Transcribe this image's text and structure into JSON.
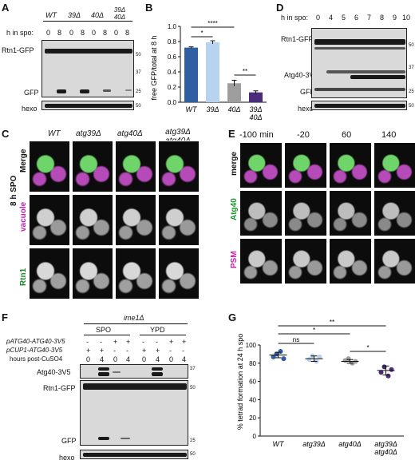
{
  "panels": {
    "A": {
      "letter": "A",
      "genotypes": [
        "WT",
        "39Δ",
        "40Δ",
        "39Δ 40Δ"
      ],
      "time_label": "h in spo:",
      "timepoints": [
        "0",
        "8",
        "0",
        "8",
        "0",
        "8",
        "0",
        "8"
      ],
      "row_labels": [
        "Rtn1-GFP",
        "GFP",
        "hexo"
      ],
      "mw": [
        "50",
        "37",
        "25",
        "50"
      ]
    },
    "B": {
      "letter": "B",
      "ylabel": "free GFP/total at 8 h",
      "significance": [
        "****",
        "*",
        "**"
      ]
    },
    "C": {
      "letter": "C",
      "columns": [
        "WT",
        "atg39Δ",
        "atg40Δ",
        "atg39Δ atg40Δ"
      ],
      "rows": [
        "Merge",
        "vacuole",
        "Rtn1"
      ],
      "side_label": "8 h SPO"
    },
    "D": {
      "letter": "D",
      "time_label": "h in spo:",
      "timepoints": [
        "0",
        "4",
        "5",
        "6",
        "7",
        "8",
        "9",
        "10"
      ],
      "row_labels": [
        "Rtn1-GFP",
        "Atg40-3V5",
        "GFP",
        "hexo"
      ],
      "mw": [
        "50",
        "37",
        "25",
        "50"
      ]
    },
    "E": {
      "letter": "E",
      "timepoints": [
        "-100 min",
        "-20",
        "60",
        "140"
      ],
      "rows": [
        "merge",
        "Atg40",
        "PSM"
      ]
    },
    "F": {
      "letter": "F",
      "strain": "ime1Δ",
      "conditions": [
        "SPO",
        "YPD"
      ],
      "row_headers": [
        "pATG40-ATG40-3V5",
        "pCUP1-ATG40-3V5",
        "hours post-CuSO4"
      ],
      "row1": [
        "-",
        "-",
        "+",
        "+",
        "-",
        "-",
        "+",
        "+"
      ],
      "row2": [
        "+",
        "+",
        "-",
        "-",
        "+",
        "+",
        "-",
        "-"
      ],
      "row3": [
        "0",
        "4",
        "0",
        "4",
        "0",
        "4",
        "0",
        "4"
      ],
      "blot_labels": [
        "Atg40-3V5",
        "Rtn1-GFP",
        "GFP",
        "hexo"
      ],
      "mw": [
        "37",
        "50",
        "25",
        "50"
      ]
    },
    "G": {
      "letter": "G",
      "ylabel": "% tetrad formation at 24 h spo",
      "significance": [
        "**",
        "*",
        "ns",
        "*"
      ]
    }
  },
  "chart_data": [
    {
      "type": "bar",
      "categories": [
        "WT",
        "39Δ",
        "40Δ",
        "39Δ 40Δ"
      ],
      "values": [
        0.72,
        0.79,
        0.25,
        0.13
      ],
      "errors": [
        0.01,
        0.02,
        0.04,
        0.02
      ],
      "colors": [
        "#2e5fa3",
        "#b7d3ef",
        "#9e9e9e",
        "#4b2c7a"
      ],
      "ylabel": "free GFP/total at 8 h",
      "ylim": [
        0,
        1.0
      ],
      "yticks": [
        "0.0",
        "0.2",
        "0.4",
        "0.6",
        "0.8",
        "1.0"
      ],
      "grid": false
    },
    {
      "type": "scatter",
      "categories": [
        "WT",
        "atg39Δ",
        "atg40Δ",
        "atg39Δ atg40Δ"
      ],
      "points": [
        [
          87,
          90,
          93,
          85
        ],
        [
          84,
          88,
          82,
          87
        ],
        [
          83,
          85,
          80,
          82
        ],
        [
          70,
          76,
          66,
          73
        ]
      ],
      "means": [
        89,
        85,
        82,
        72
      ],
      "sd": [
        3,
        3,
        2,
        5
      ],
      "colors": [
        "#2e5fa3",
        "#b7d3ef",
        "#9e9e9e",
        "#4b2c7a"
      ],
      "ylabel": "% tetrad formation at 24 h spo",
      "ylim": [
        0,
        100
      ],
      "yticks": [
        "0",
        "20",
        "40",
        "60",
        "80",
        "100"
      ],
      "grid": false
    }
  ]
}
